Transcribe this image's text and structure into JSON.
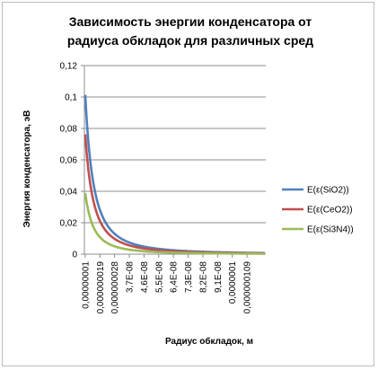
{
  "chart_data": {
    "type": "line",
    "title": [
      "Зависимость энергии конденсатора от",
      "радиуса обкладок для различных сред"
    ],
    "xlabel": "Радиус обкладок, м",
    "ylabel": "Энергия конденсатора, эВ",
    "ylim": [
      0,
      0.12
    ],
    "yticks": [
      "0",
      "0,02",
      "0,04",
      "0,06",
      "0,08",
      "0,1",
      "0,12"
    ],
    "xtick_labels": [
      "0,00000001",
      "0,000000019",
      "0,000000028",
      "3,7E-08",
      "4,6E-08",
      "5,5E-08",
      "6,4E-08",
      "7,3E-08",
      "8,2E-08",
      "9,1E-08",
      "0,0000001",
      "0,000000109"
    ],
    "grid": "horizontal",
    "legend_position": "right",
    "x_start": 1e-08,
    "x_step": 1e-09,
    "x_count": 111,
    "series": [
      {
        "name": "E(ε(SiO2))",
        "color": "#4F81BD",
        "amplitude": 0.1014
      },
      {
        "name": "E(ε(CeO2))",
        "color": "#C0504D",
        "amplitude": 0.0762
      },
      {
        "name": "E(ε(Si3N4))",
        "color": "#9BBB59",
        "amplitude": 0.0389
      }
    ]
  }
}
